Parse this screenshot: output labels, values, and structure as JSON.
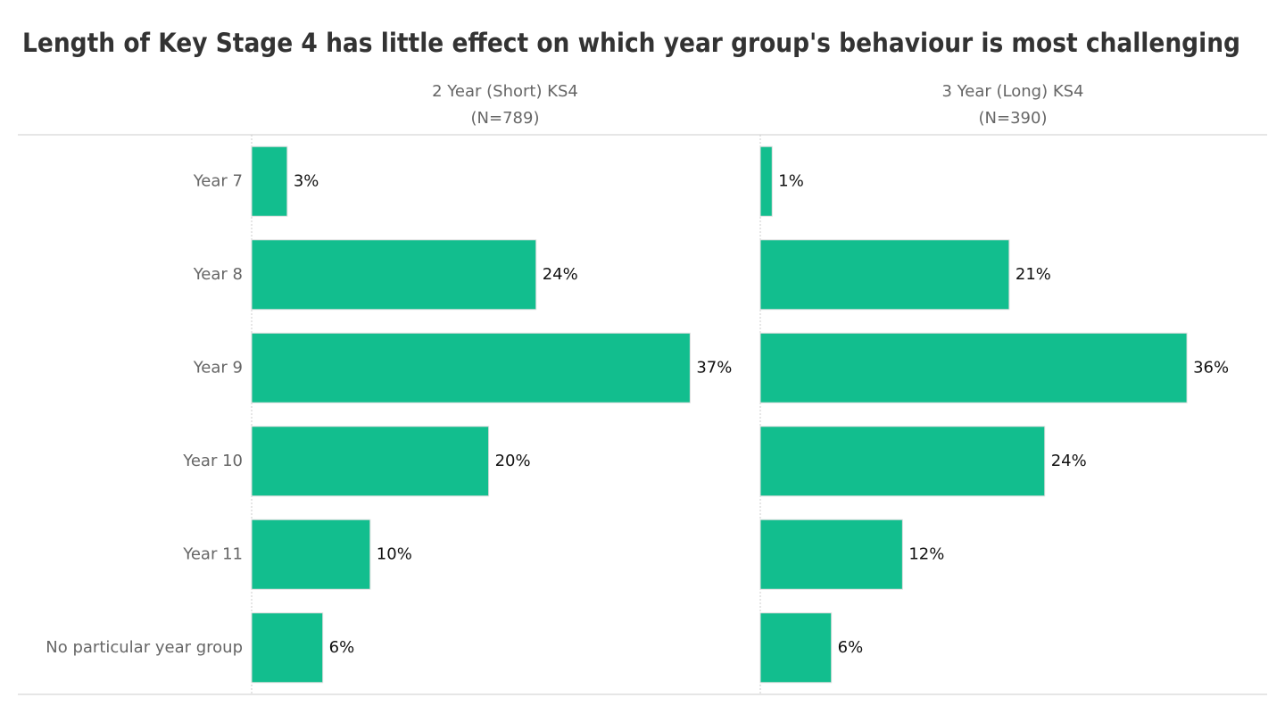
{
  "chart_data": {
    "type": "bar",
    "title": "Length of Key Stage 4 has little effect on which year group's behaviour is most challenging",
    "categories": [
      "Year 7",
      "Year 8",
      "Year 9",
      "Year 10",
      "Year 11",
      "No particular year group"
    ],
    "series": [
      {
        "name": "2 Year (Short) KS4",
        "note": "(N=789)",
        "color": "#12be8e",
        "values": [
          3,
          24,
          37,
          20,
          10,
          6
        ],
        "value_labels": [
          "3%",
          "24%",
          "37%",
          "20%",
          "10%",
          "6%"
        ]
      },
      {
        "name": "3 Year (Long) KS4",
        "note": "(N=390)",
        "color": "#12be8e",
        "values": [
          1,
          21,
          36,
          24,
          12,
          6
        ],
        "value_labels": [
          "1%",
          "21%",
          "36%",
          "24%",
          "12%",
          "6%"
        ]
      }
    ]
  }
}
